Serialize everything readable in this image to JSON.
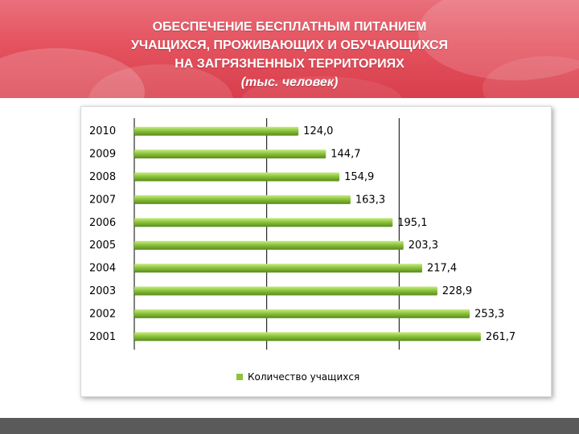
{
  "header": {
    "line1": "ОБЕСПЕЧЕНИЕ БЕСПЛАТНЫМ ПИТАНИЕМ",
    "line2": "УЧАЩИХСЯ, ПРОЖИВАЮЩИХ И ОБУЧАЮЩИХСЯ",
    "line3": "НА ЗАГРЯЗНЕННЫХ ТЕРРИТОРИЯХ",
    "subtitle": "(тыс. человек)"
  },
  "colors": {
    "bar": "#8cc43c",
    "bar_highlight": "#c9ec86",
    "bar_shadow": "#5a8a1c",
    "header_band": "#e4535f"
  },
  "chart_data": {
    "type": "bar",
    "orientation": "horizontal",
    "title": "",
    "categories": [
      "2010",
      "2009",
      "2008",
      "2007",
      "2006",
      "2005",
      "2004",
      "2003",
      "2002",
      "2001"
    ],
    "series": [
      {
        "name": "Количество учащихся",
        "values": [
          124.0,
          144.7,
          154.9,
          163.3,
          195.1,
          203.3,
          217.4,
          228.9,
          253.3,
          261.7
        ],
        "labels": [
          "124,0",
          "144,7",
          "154,9",
          "163,3",
          "195,1",
          "203,3",
          "217,4",
          "228,9",
          "253,3",
          "261,7"
        ]
      }
    ],
    "xlim": [
      0,
      300
    ],
    "gridlines_x": [
      100,
      200
    ],
    "grid": true,
    "legend": "bottom",
    "xlabel": "",
    "ylabel": ""
  }
}
